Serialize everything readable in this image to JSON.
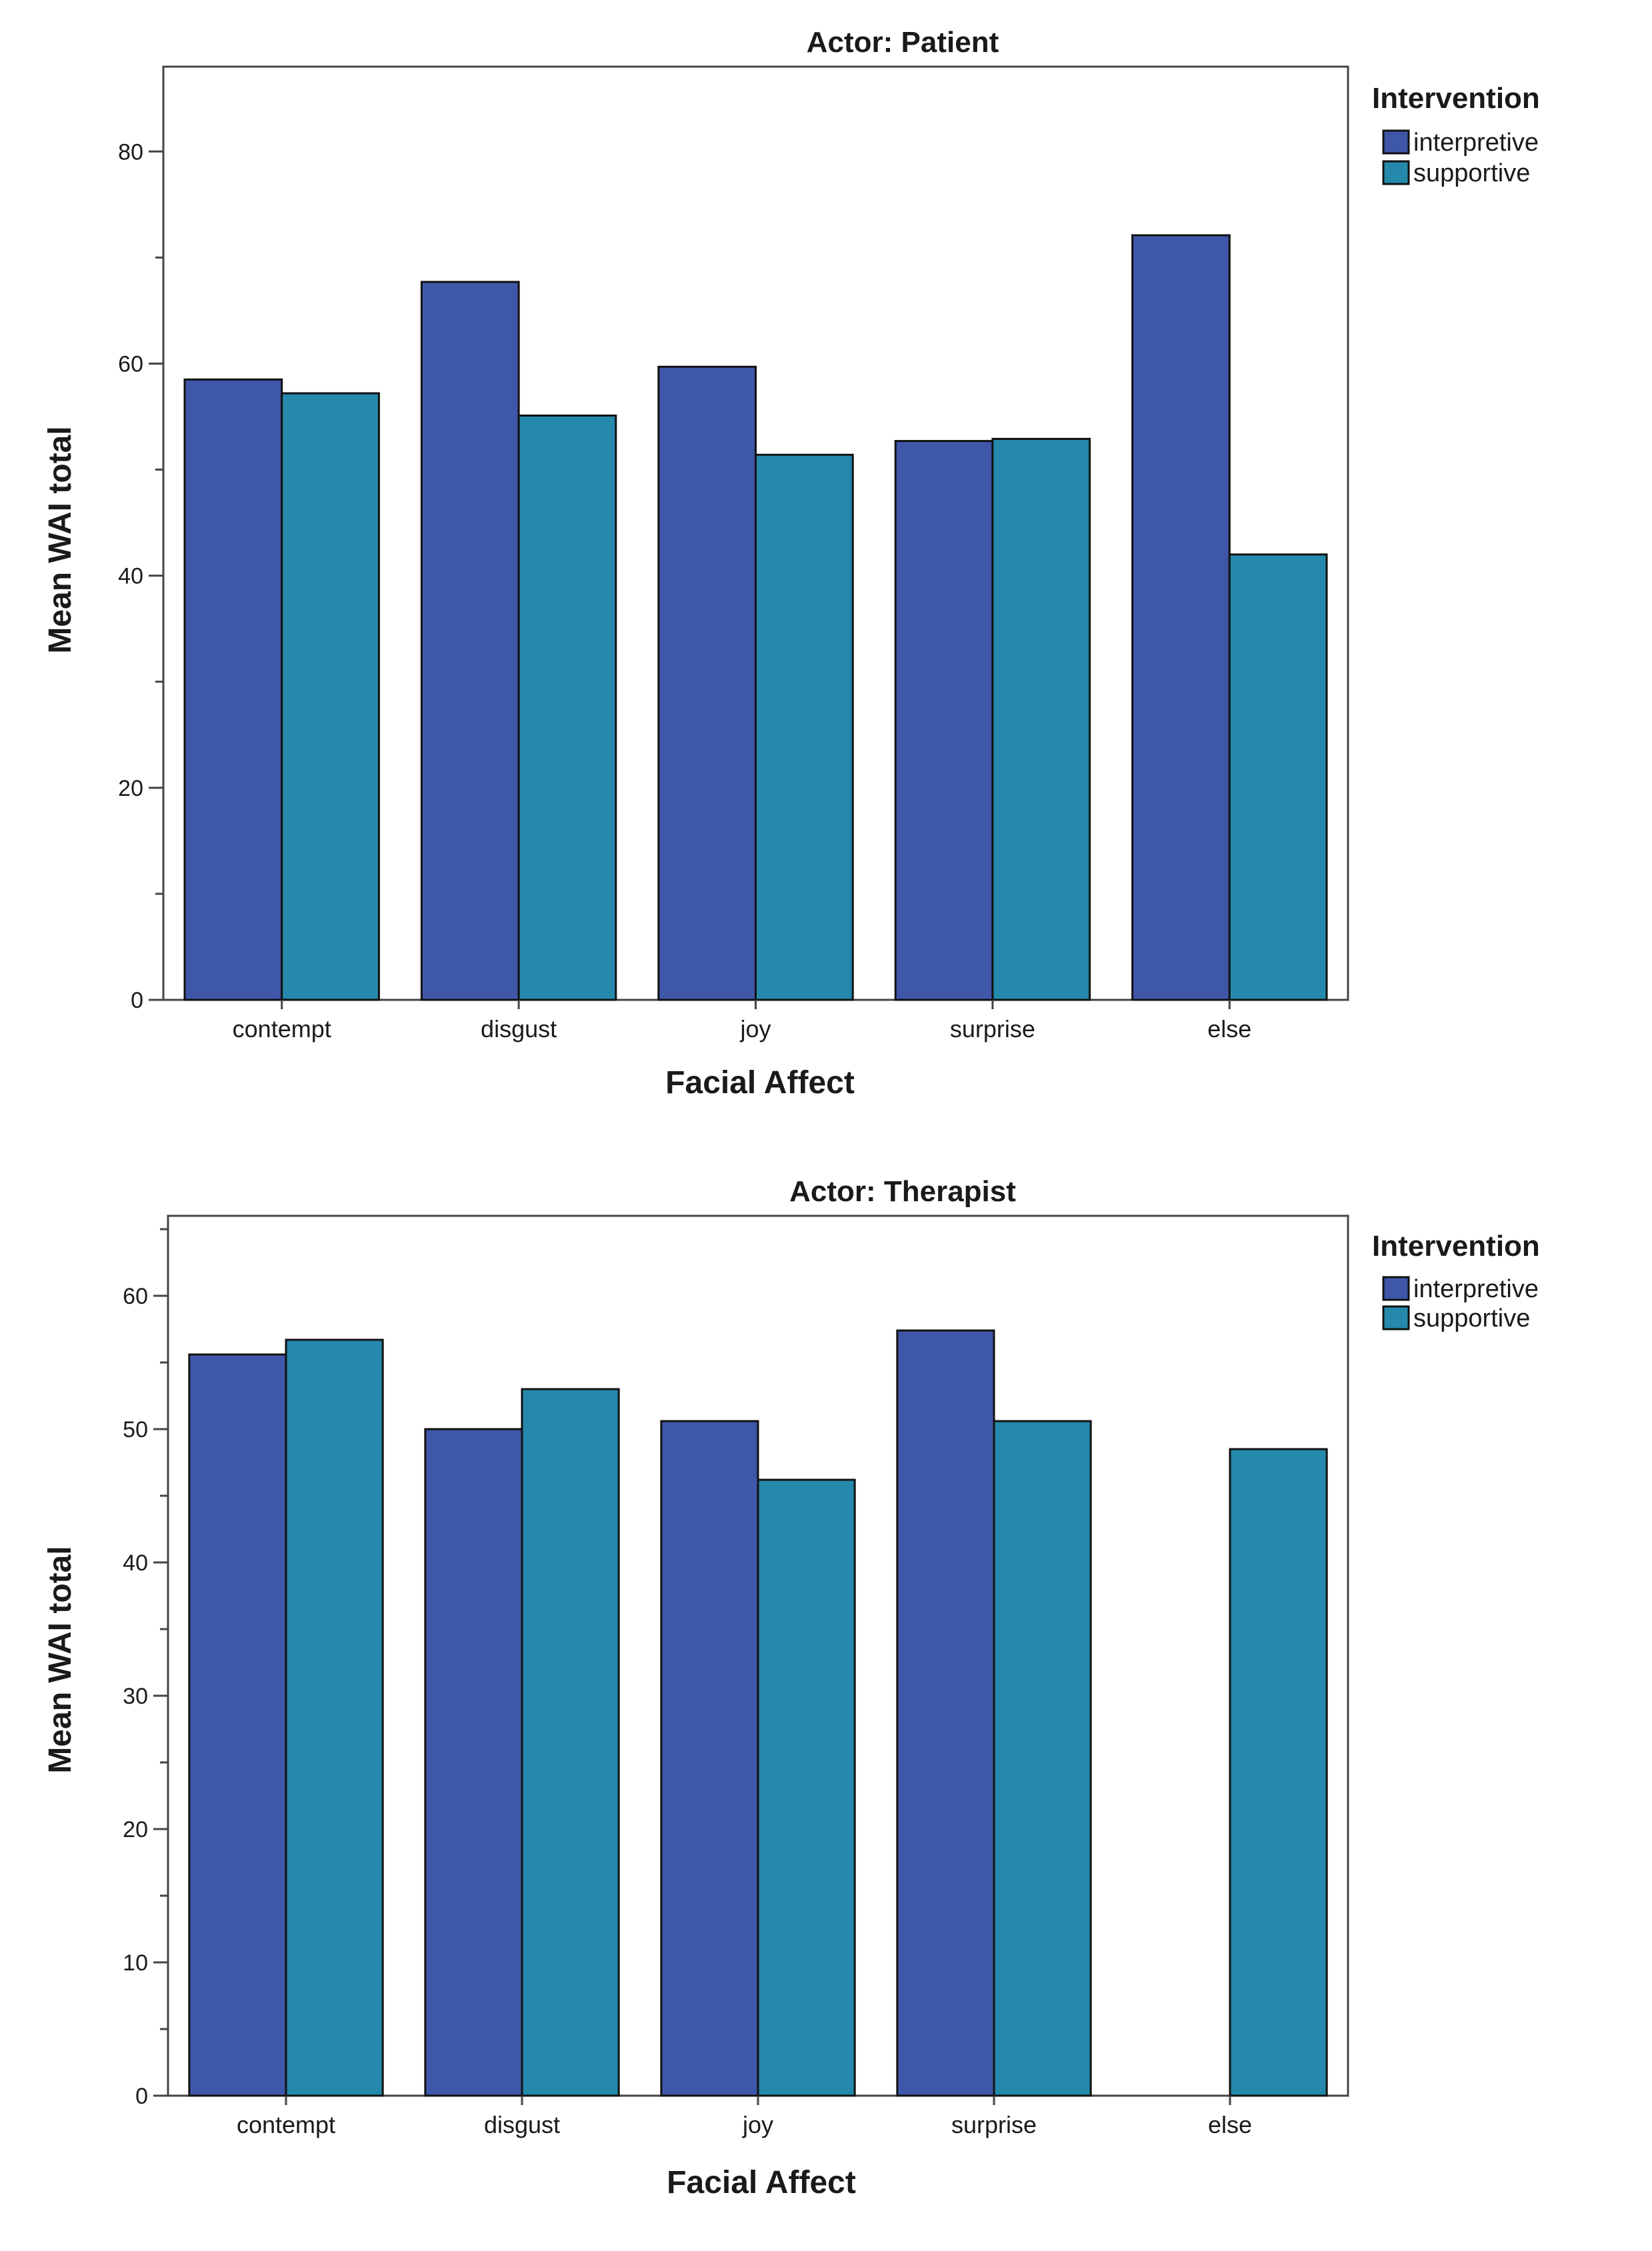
{
  "chart_data": [
    {
      "type": "bar",
      "title": "Actor: Patient",
      "xlabel": "Facial Affect",
      "ylabel": "Mean WAI total",
      "ylim": [
        0,
        88
      ],
      "yticks": [
        0,
        20,
        40,
        60,
        80
      ],
      "categories": [
        "contempt",
        "disgust",
        "joy",
        "surprise",
        "else"
      ],
      "series": [
        {
          "name": "interpretive",
          "values": [
            58.5,
            67.7,
            59.7,
            52.7,
            72.1
          ]
        },
        {
          "name": "supportive",
          "values": [
            57.2,
            55.1,
            51.4,
            52.9,
            42.0
          ]
        }
      ],
      "legend": {
        "title": "Intervention",
        "position": "right"
      },
      "grid": false
    },
    {
      "type": "bar",
      "title": "Actor: Therapist",
      "xlabel": "Facial Affect",
      "ylabel": "Mean WAI total",
      "ylim": [
        0,
        66
      ],
      "yticks": [
        0,
        10,
        20,
        30,
        40,
        50,
        60
      ],
      "categories": [
        "contempt",
        "disgust",
        "joy",
        "surprise",
        "else"
      ],
      "series": [
        {
          "name": "interpretive",
          "values": [
            55.6,
            50.0,
            50.6,
            57.4,
            null
          ]
        },
        {
          "name": "supportive",
          "values": [
            56.7,
            53.0,
            46.2,
            50.6,
            48.5
          ]
        }
      ],
      "legend": {
        "title": "Intervention",
        "position": "right"
      },
      "grid": false
    }
  ],
  "colors": {
    "interpretive": "#3f57a8",
    "supportive": "#2589ab",
    "frame": "#444444",
    "bar_outline": "#111111"
  }
}
